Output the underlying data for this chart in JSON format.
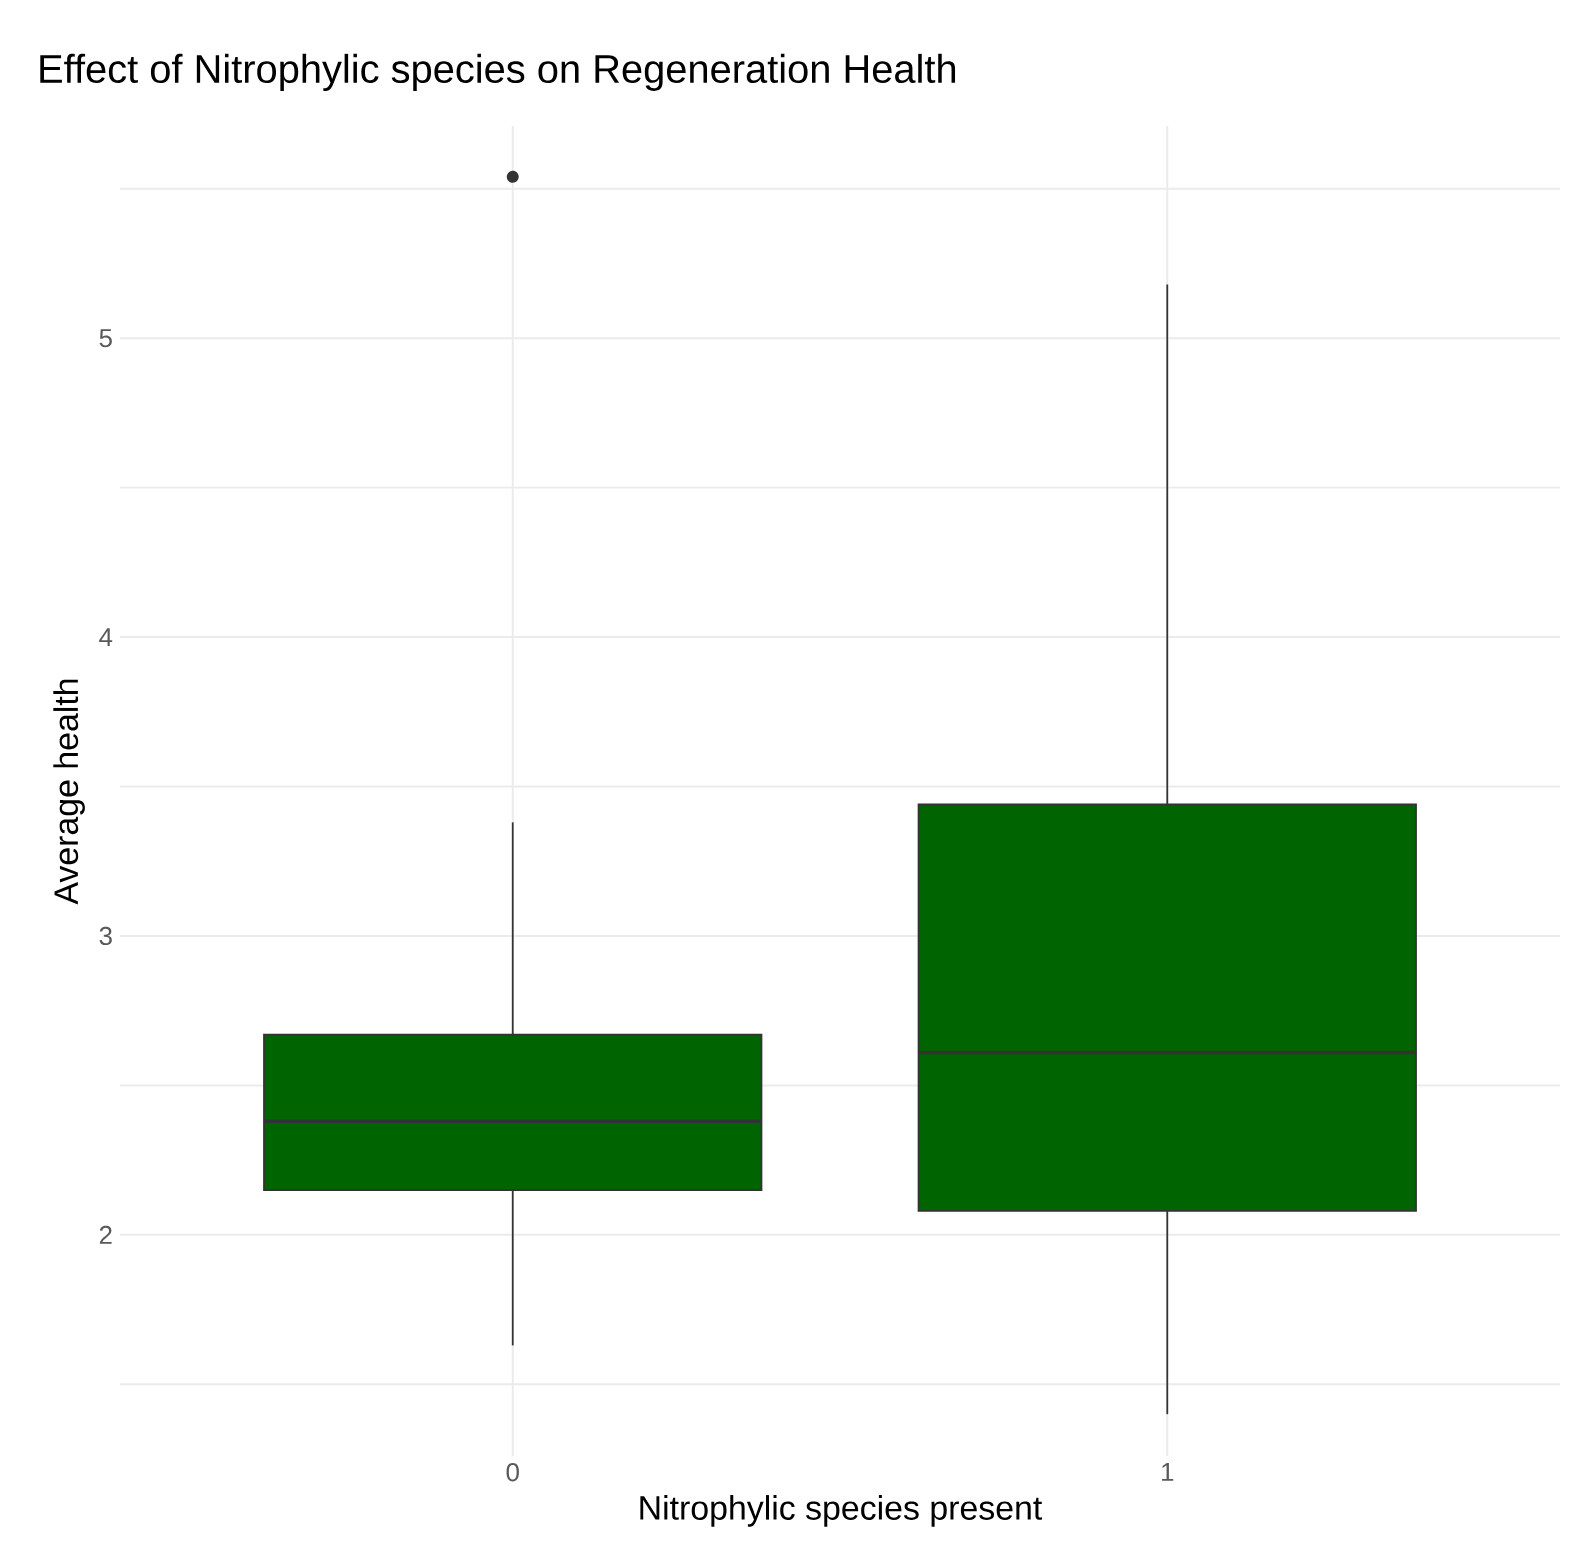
{
  "chart_data": {
    "type": "box",
    "title": "Effect of Nitrophylic species on Regeneration Health",
    "xlabel": "Nitrophylic species present",
    "ylabel": "Average health",
    "categories": [
      "0",
      "1"
    ],
    "color": "#006400",
    "boxes": [
      {
        "low": 1.63,
        "q1": 2.15,
        "median": 2.38,
        "q3": 2.67,
        "high": 3.38,
        "outliers": [
          5.54
        ]
      },
      {
        "low": 1.4,
        "q1": 2.08,
        "median": 2.61,
        "q3": 3.44,
        "high": 5.18
      }
    ],
    "ylim": [
      1.26,
      5.71
    ],
    "yticks": [
      {
        "value": 1.5,
        "label": null
      },
      2,
      {
        "value": 2.5,
        "label": null
      },
      3,
      {
        "value": 3.5,
        "label": null
      },
      4,
      {
        "value": 4.5,
        "label": null
      },
      5,
      {
        "value": 5.5,
        "label": null
      }
    ],
    "grid": true
  }
}
